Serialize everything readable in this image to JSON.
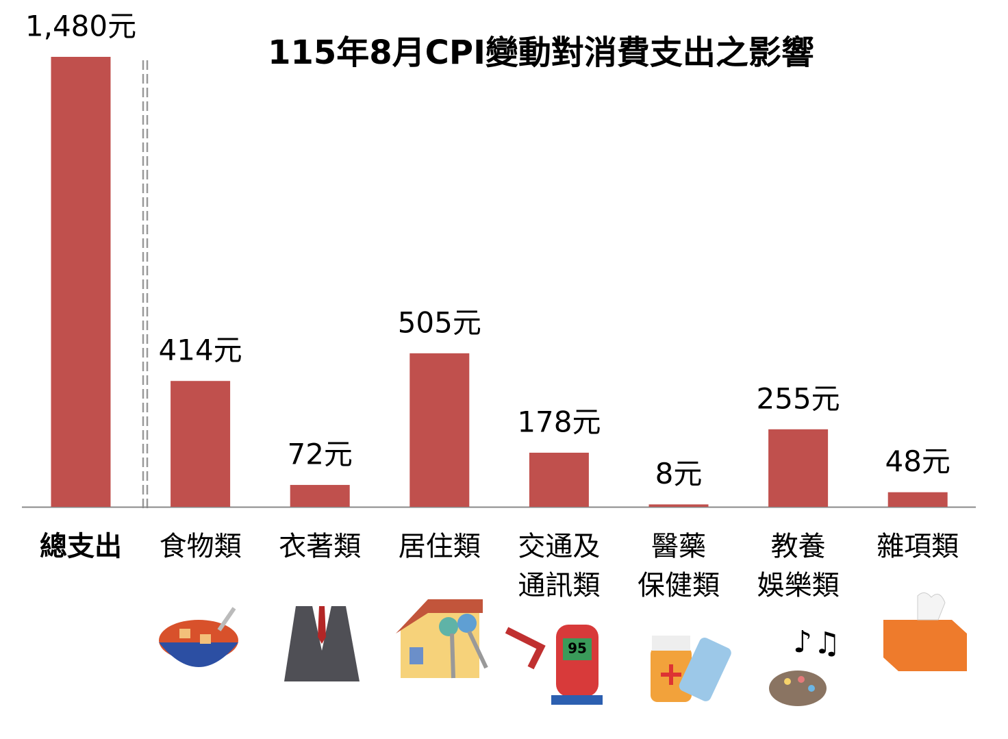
{
  "chart_data": {
    "type": "bar",
    "title": "115年8月CPI變動對消費支出之影響",
    "categories": [
      [
        "總支出"
      ],
      [
        "食物類"
      ],
      [
        "衣著類"
      ],
      [
        "居住類"
      ],
      [
        "交通及",
        "通訊類"
      ],
      [
        "醫藥",
        "保健類"
      ],
      [
        "教養",
        "娛樂類"
      ],
      [
        "雜項類"
      ]
    ],
    "values": [
      1480,
      414,
      72,
      505,
      178,
      8,
      255,
      48
    ],
    "value_labels": [
      "1,480元",
      "414元",
      "72元",
      "505元",
      "178元",
      "8元",
      "255元",
      "48元"
    ],
    "color": "#c0504d"
  }
}
